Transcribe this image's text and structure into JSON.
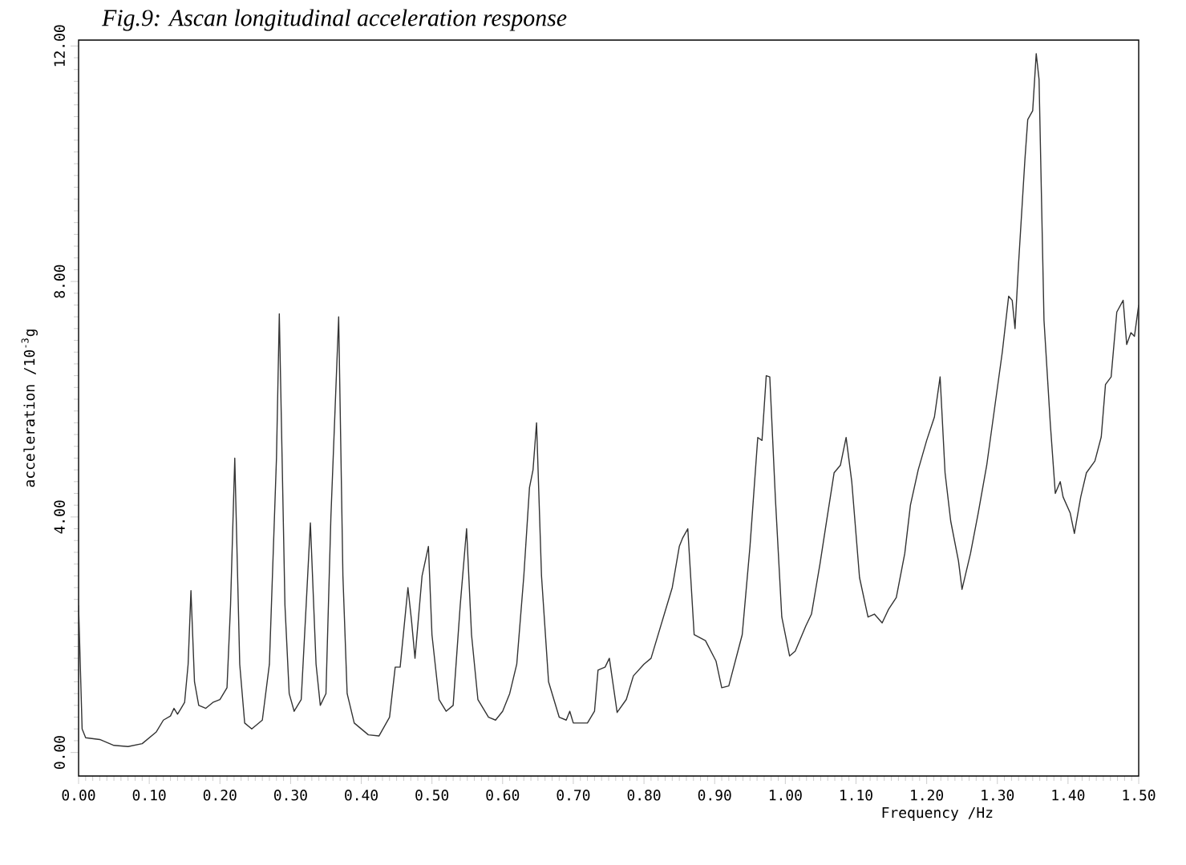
{
  "chart_data": {
    "type": "line",
    "title": "Fig.9: Ascan longitudinal acceleration response",
    "xlabel": "Frequency /Hz",
    "ylabel": "acceleration /10$^{-3}$g",
    "color": "#333333",
    "xlim": [
      0,
      1.5
    ],
    "ylim": [
      -0.4,
      12.1
    ],
    "xticks": [
      {
        "value": 0,
        "label": "0.00"
      },
      {
        "value": 0.1,
        "label": "0.10"
      },
      {
        "value": 0.2,
        "label": "0.20"
      },
      {
        "value": 0.3,
        "label": "0.30"
      },
      {
        "value": 0.4,
        "label": "0.40"
      },
      {
        "value": 0.5,
        "label": "0.50"
      },
      {
        "value": 0.6,
        "label": "0.60"
      },
      {
        "value": 0.7,
        "label": "0.70"
      },
      {
        "value": 0.8,
        "label": "0.80"
      },
      {
        "value": 0.9,
        "label": "0.90"
      },
      {
        "value": 1.0,
        "label": "1.00"
      },
      {
        "value": 1.1,
        "label": "1.10"
      },
      {
        "value": 1.2,
        "label": "1.20"
      },
      {
        "value": 1.3,
        "label": "1.30"
      },
      {
        "value": 1.4,
        "label": "1.40"
      },
      {
        "value": 1.5,
        "label": "1.50"
      }
    ],
    "yticks": [
      {
        "value": 0,
        "label": "0.00"
      },
      {
        "value": 4,
        "label": "4.00"
      },
      {
        "value": 8,
        "label": "8.00"
      },
      {
        "value": 12,
        "label": "12.00"
      }
    ],
    "x": [
      0.0,
      0.005,
      0.01,
      0.03,
      0.05,
      0.07,
      0.09,
      0.11,
      0.12,
      0.13,
      0.135,
      0.14,
      0.145,
      0.15,
      0.155,
      0.159,
      0.164,
      0.17,
      0.18,
      0.19,
      0.2,
      0.21,
      0.215,
      0.221,
      0.228,
      0.235,
      0.245,
      0.26,
      0.27,
      0.28,
      0.284,
      0.292,
      0.298,
      0.305,
      0.315,
      0.322,
      0.328,
      0.336,
      0.342,
      0.35,
      0.357,
      0.368,
      0.374,
      0.38,
      0.39,
      0.41,
      0.425,
      0.44,
      0.448,
      0.455,
      0.466,
      0.471,
      0.476,
      0.486,
      0.495,
      0.5,
      0.51,
      0.52,
      0.53,
      0.54,
      0.549,
      0.556,
      0.565,
      0.58,
      0.59,
      0.6,
      0.61,
      0.62,
      0.63,
      0.638,
      0.643,
      0.648,
      0.655,
      0.665,
      0.68,
      0.69,
      0.695,
      0.7,
      0.72,
      0.73,
      0.735,
      0.745,
      0.751,
      0.762,
      0.775,
      0.785,
      0.8,
      0.81,
      0.82,
      0.83,
      0.84,
      0.85,
      0.855,
      0.862,
      0.871,
      0.887,
      0.902,
      0.91,
      0.92,
      0.939,
      0.95,
      0.961,
      0.967,
      0.973,
      0.978,
      0.986,
      0.995,
      1.006,
      1.014,
      1.029,
      1.037,
      1.049,
      1.058,
      1.069,
      1.078,
      1.086,
      1.094,
      1.105,
      1.117,
      1.126,
      1.137,
      1.146,
      1.157,
      1.169,
      1.177,
      1.188,
      1.2,
      1.211,
      1.219,
      1.226,
      1.234,
      1.245,
      1.25,
      1.262,
      1.273,
      1.285,
      1.296,
      1.307,
      1.316,
      1.321,
      1.325,
      1.33,
      1.339,
      1.343,
      1.35,
      1.355,
      1.359,
      1.366,
      1.375,
      1.382,
      1.389,
      1.393,
      1.403,
      1.409,
      1.418,
      1.426,
      1.438,
      1.447,
      1.453,
      1.461,
      1.469,
      1.478,
      1.483,
      1.489,
      1.494,
      1.5
    ],
    "values": [
      2.5,
      0.4,
      0.25,
      0.22,
      0.12,
      0.1,
      0.15,
      0.35,
      0.55,
      0.62,
      0.75,
      0.65,
      0.75,
      0.85,
      1.5,
      2.75,
      1.2,
      0.8,
      0.75,
      0.85,
      0.9,
      1.1,
      2.5,
      5.0,
      1.5,
      0.5,
      0.4,
      0.55,
      1.5,
      5.0,
      7.45,
      2.5,
      1.0,
      0.7,
      0.9,
      2.5,
      3.9,
      1.5,
      0.8,
      1.0,
      4.0,
      7.4,
      3.0,
      1.0,
      0.5,
      0.3,
      0.28,
      0.6,
      1.45,
      1.45,
      2.8,
      2.25,
      1.6,
      3.0,
      3.5,
      2.0,
      0.9,
      0.7,
      0.8,
      2.5,
      3.8,
      2.0,
      0.9,
      0.6,
      0.55,
      0.7,
      1.0,
      1.5,
      3.0,
      4.5,
      4.8,
      5.6,
      3.0,
      1.2,
      0.6,
      0.55,
      0.7,
      0.5,
      0.5,
      0.7,
      1.4,
      1.45,
      1.6,
      0.68,
      0.9,
      1.3,
      1.5,
      1.6,
      2.0,
      2.4,
      2.8,
      3.5,
      3.65,
      3.8,
      2.0,
      1.9,
      1.55,
      1.1,
      1.13,
      2.0,
      3.5,
      5.35,
      5.3,
      6.4,
      6.38,
      4.3,
      2.3,
      1.64,
      1.72,
      2.15,
      2.35,
      3.2,
      3.9,
      4.75,
      4.88,
      5.35,
      4.6,
      2.97,
      2.3,
      2.35,
      2.2,
      2.43,
      2.63,
      3.38,
      4.2,
      4.8,
      5.3,
      5.7,
      6.38,
      4.75,
      3.93,
      3.25,
      2.77,
      3.38,
      4.07,
      4.88,
      5.84,
      6.8,
      7.75,
      7.68,
      7.2,
      8.3,
      10.07,
      10.75,
      10.9,
      11.87,
      11.43,
      7.34,
      5.57,
      4.4,
      4.6,
      4.34,
      4.07,
      3.72,
      4.34,
      4.75,
      4.95,
      5.36,
      6.25,
      6.38,
      7.48,
      7.68,
      6.93,
      7.13,
      7.07,
      7.6
    ]
  }
}
